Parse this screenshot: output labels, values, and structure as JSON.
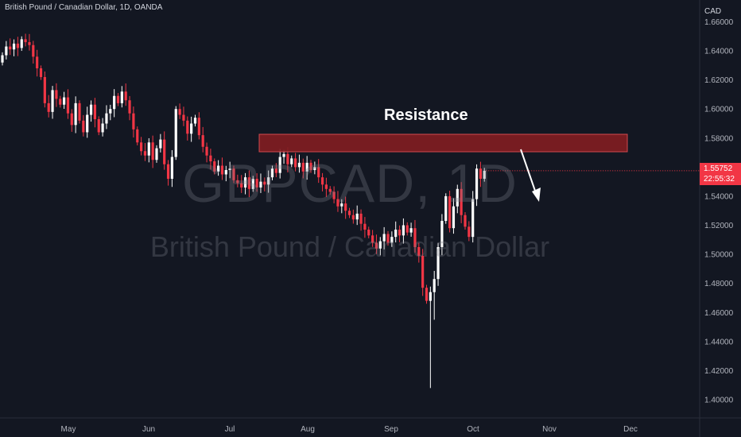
{
  "header": {
    "ticker_line": "British Pound / Canadian Dollar, 1D, OANDA"
  },
  "watermark": {
    "symbol": "GBPCAD, 1D",
    "name": "British Pound / Canadian Dollar"
  },
  "annotation": {
    "text": "Resistance"
  },
  "price_tag": {
    "price": "1.55752",
    "countdown": "22:55:32"
  },
  "colors": {
    "background": "#131722",
    "up": "#ffffff",
    "down": "#f23645",
    "zone": "#801d22",
    "text": "#b2b5be"
  },
  "chart_data": {
    "type": "candlestick",
    "title": "British Pound / Canadian Dollar, 1D, OANDA",
    "y_axis": {
      "unit": "CAD",
      "min": 1.39,
      "max": 1.668,
      "ticks": [
        "1.66000",
        "1.64000",
        "1.62000",
        "1.60000",
        "1.58000",
        "1.56000",
        "1.54000",
        "1.52000",
        "1.50000",
        "1.48000",
        "1.46000",
        "1.44000",
        "1.42000",
        "1.40000"
      ]
    },
    "x_axis": {
      "ticks": [
        "May",
        "Jun",
        "Jul",
        "Aug",
        "Sep",
        "Oct",
        "Nov",
        "Dec"
      ]
    },
    "current_price": 1.55752,
    "resistance_zone": {
      "label": "Resistance",
      "low": 1.5695,
      "high": 1.5822
    },
    "grid": false,
    "series_close": [
      1.637,
      1.643,
      1.641,
      1.645,
      1.642,
      1.648,
      1.646,
      1.644,
      1.636,
      1.628,
      1.622,
      1.604,
      1.598,
      1.613,
      1.607,
      1.603,
      1.608,
      1.597,
      1.589,
      1.604,
      1.592,
      1.584,
      1.596,
      1.603,
      1.593,
      1.584,
      1.59,
      1.597,
      1.6,
      1.609,
      1.604,
      1.612,
      1.606,
      1.597,
      1.586,
      1.577,
      1.571,
      1.568,
      1.577,
      1.565,
      1.573,
      1.579,
      1.562,
      1.552,
      1.567,
      1.6,
      1.596,
      1.592,
      1.583,
      1.59,
      1.594,
      1.582,
      1.574,
      1.568,
      1.564,
      1.557,
      1.561,
      1.555,
      1.558,
      1.559,
      1.551,
      1.549,
      1.546,
      1.553,
      1.545,
      1.552,
      1.546,
      1.55,
      1.548,
      1.553,
      1.559,
      1.556,
      1.567,
      1.569,
      1.562,
      1.566,
      1.56,
      1.563,
      1.557,
      1.563,
      1.558,
      1.56,
      1.553,
      1.548,
      1.545,
      1.543,
      1.538,
      1.533,
      1.535,
      1.53,
      1.527,
      1.524,
      1.528,
      1.521,
      1.517,
      1.513,
      1.508,
      1.504,
      1.509,
      1.514,
      1.508,
      1.512,
      1.517,
      1.513,
      1.52,
      1.515,
      1.518,
      1.505,
      1.499,
      1.477,
      1.468,
      1.474,
      1.483,
      1.505,
      1.523,
      1.54,
      1.518,
      1.533,
      1.545,
      1.527,
      1.519,
      1.512,
      1.538,
      1.559,
      1.552,
      1.5575
    ]
  }
}
